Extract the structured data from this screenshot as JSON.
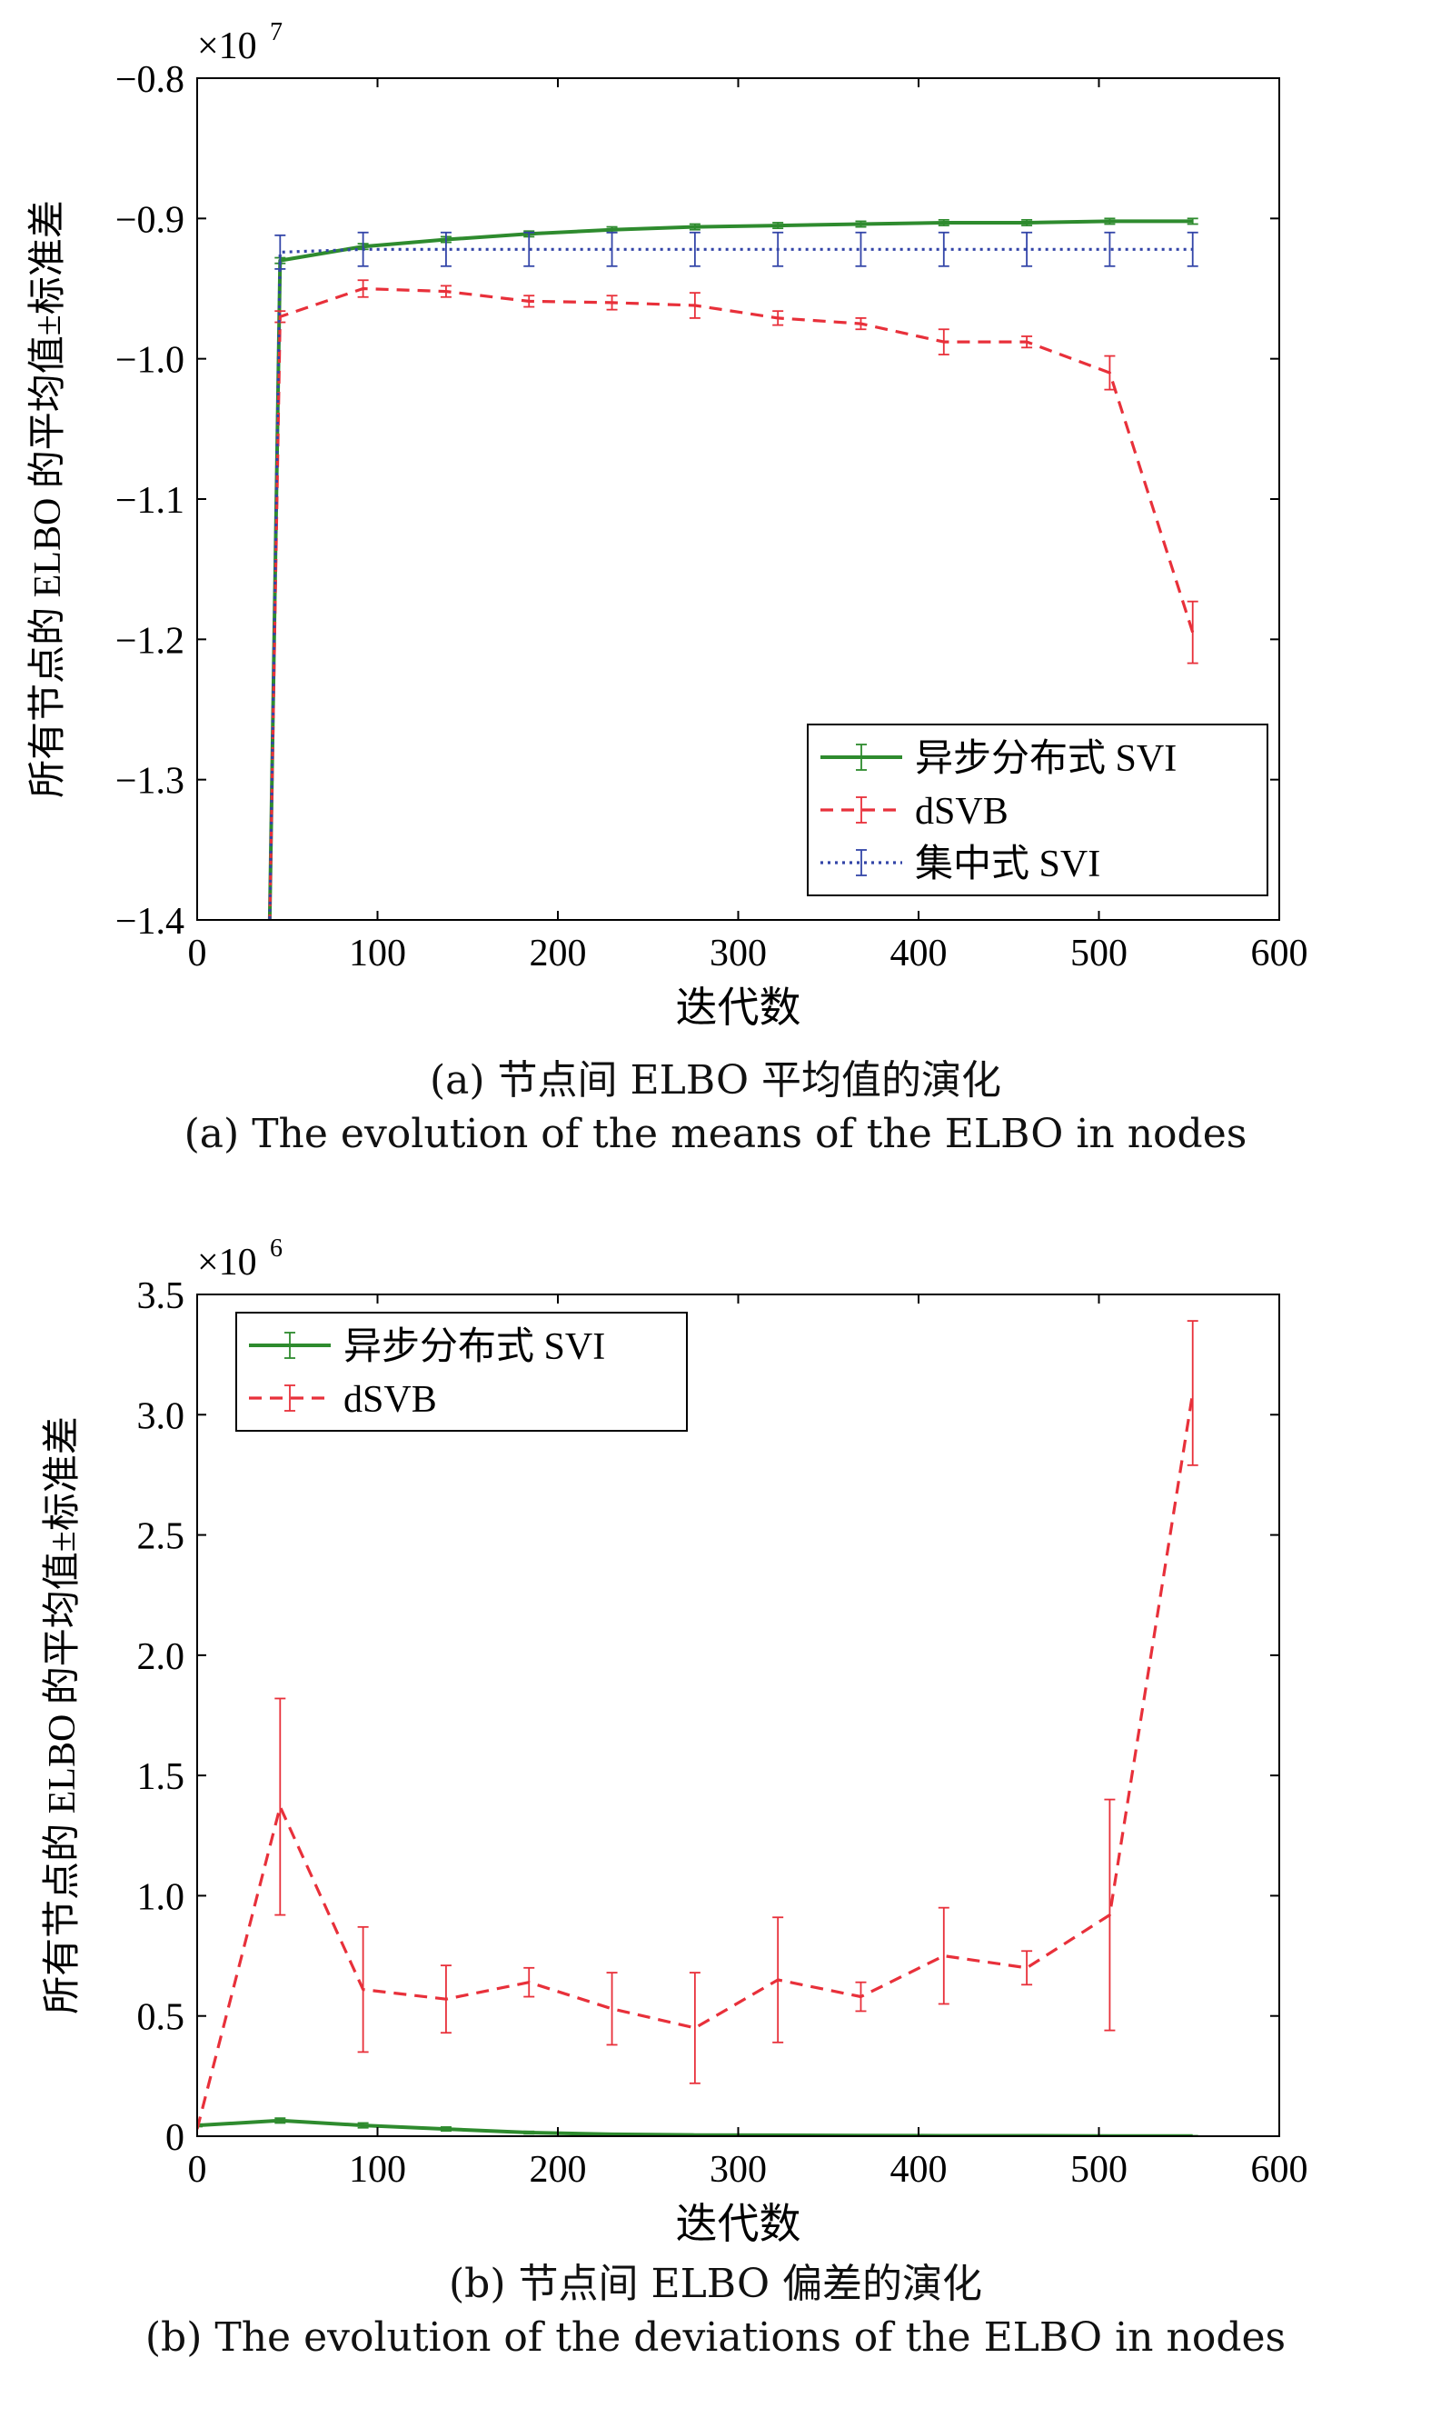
{
  "chart_data": [
    {
      "type": "line",
      "id": "a",
      "ylabel": "所有节点的 ELBO 的平均值±标准差",
      "xlabel": "迭代数",
      "multiplier": "×10",
      "multiplier_exp": "7",
      "xlim": [
        0,
        600
      ],
      "ylim": [
        -1.4,
        -0.8
      ],
      "xticks": [
        0,
        100,
        200,
        300,
        400,
        500,
        600
      ],
      "xtick_labels": [
        "0",
        "100",
        "200",
        "300",
        "400",
        "500",
        "600"
      ],
      "yticks": [
        -1.4,
        -1.3,
        -1.2,
        -1.1,
        -1.0,
        -0.9,
        -0.8
      ],
      "ytick_labels": [
        "−1.4",
        "−1.3",
        "−1.2",
        "−1.1",
        "−1.0",
        "−0.9",
        "−0.8"
      ],
      "legend": "bottom-right",
      "grid": false,
      "series": [
        {
          "name": "异步分布式 SVI",
          "color": "#2e8b2e",
          "dash": "solid",
          "x": [
            40,
            46,
            92,
            138,
            184,
            230,
            276,
            322,
            368,
            414,
            460,
            506,
            552
          ],
          "y": [
            -1.42,
            -0.93,
            -0.92,
            -0.915,
            -0.911,
            -0.908,
            -0.906,
            -0.905,
            -0.904,
            -0.903,
            -0.903,
            -0.902,
            -0.902
          ],
          "err": [
            0,
            0.002,
            0.002,
            0.002,
            0.002,
            0.002,
            0.002,
            0.002,
            0.002,
            0.002,
            0.002,
            0.002,
            0.002
          ]
        },
        {
          "name": "dSVB",
          "color": "#e8303a",
          "dash": "14,9",
          "x": [
            40,
            46,
            92,
            138,
            184,
            230,
            276,
            322,
            368,
            414,
            460,
            506,
            552
          ],
          "y": [
            -1.42,
            -0.97,
            -0.95,
            -0.952,
            -0.959,
            -0.96,
            -0.962,
            -0.971,
            -0.975,
            -0.988,
            -0.988,
            -1.01,
            -1.195
          ],
          "err": [
            0,
            0.004,
            0.006,
            0.004,
            0.004,
            0.005,
            0.009,
            0.005,
            0.004,
            0.009,
            0.004,
            0.012,
            0.022
          ]
        },
        {
          "name": "集中式 SVI",
          "color": "#3345a8",
          "dash": "3,5",
          "x": [
            40,
            46,
            92,
            138,
            184,
            230,
            276,
            322,
            368,
            414,
            460,
            506,
            552
          ],
          "y": [
            -1.42,
            -0.924,
            -0.922,
            -0.922,
            -0.922,
            -0.922,
            -0.922,
            -0.922,
            -0.922,
            -0.922,
            -0.922,
            -0.922,
            -0.922
          ],
          "err": [
            0,
            0.012,
            0.012,
            0.012,
            0.012,
            0.012,
            0.012,
            0.012,
            0.012,
            0.012,
            0.012,
            0.012,
            0.012
          ]
        }
      ]
    },
    {
      "type": "line",
      "id": "b",
      "ylabel": "所有节点的 ELBO 的平均值±标准差",
      "xlabel": "迭代数",
      "multiplier": "×10",
      "multiplier_exp": "6",
      "xlim": [
        0,
        600
      ],
      "ylim": [
        0,
        3.5
      ],
      "xticks": [
        0,
        100,
        200,
        300,
        400,
        500,
        600
      ],
      "xtick_labels": [
        "0",
        "100",
        "200",
        "300",
        "400",
        "500",
        "600"
      ],
      "yticks": [
        0,
        0.5,
        1.0,
        1.5,
        2.0,
        2.5,
        3.0,
        3.5
      ],
      "ytick_labels": [
        "0",
        "0.5",
        "1.0",
        "1.5",
        "2.0",
        "2.5",
        "3.0",
        "3.5"
      ],
      "legend": "top-left",
      "grid": false,
      "series": [
        {
          "name": "异步分布式 SVI",
          "color": "#2e8b2e",
          "dash": "solid",
          "x": [
            0,
            46,
            92,
            138,
            184,
            230,
            276,
            322,
            368,
            414,
            460,
            506,
            552
          ],
          "y": [
            0.045,
            0.065,
            0.045,
            0.03,
            0.015,
            0.008,
            0.005,
            0.004,
            0.003,
            0.002,
            0.002,
            0.001,
            0.001
          ],
          "err": [
            0.005,
            0.01,
            0.01,
            0.008,
            0.005,
            0.003,
            0.002,
            0.002,
            0.001,
            0.001,
            0.001,
            0.001,
            0.001
          ]
        },
        {
          "name": "dSVB",
          "color": "#e8303a",
          "dash": "14,9",
          "x": [
            0,
            46,
            92,
            138,
            184,
            230,
            276,
            322,
            368,
            414,
            460,
            506,
            552
          ],
          "y": [
            0.03,
            1.37,
            0.61,
            0.57,
            0.64,
            0.53,
            0.45,
            0.65,
            0.58,
            0.75,
            0.7,
            0.92,
            3.09
          ],
          "err": [
            0,
            0.45,
            0.26,
            0.14,
            0.06,
            0.15,
            0.23,
            0.26,
            0.06,
            0.2,
            0.07,
            0.48,
            0.3
          ]
        }
      ]
    }
  ],
  "captions": {
    "a_cn": "(a) 节点间 ELBO 平均值的演化",
    "a_en": "(a) The evolution of the means of the ELBO in nodes",
    "b_cn": "(b) 节点间 ELBO 偏差的演化",
    "b_en": "(b) The evolution of the deviations of the ELBO in nodes"
  }
}
